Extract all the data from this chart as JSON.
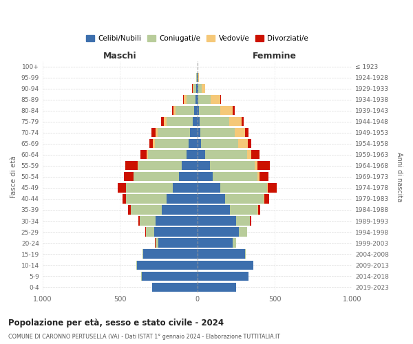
{
  "age_groups": [
    "0-4",
    "5-9",
    "10-14",
    "15-19",
    "20-24",
    "25-29",
    "30-34",
    "35-39",
    "40-44",
    "45-49",
    "50-54",
    "55-59",
    "60-64",
    "65-69",
    "70-74",
    "75-79",
    "80-84",
    "85-89",
    "90-94",
    "95-99",
    "100+"
  ],
  "birth_years": [
    "2019-2023",
    "2014-2018",
    "2009-2013",
    "2004-2008",
    "1999-2003",
    "1994-1998",
    "1989-1993",
    "1984-1988",
    "1979-1983",
    "1974-1978",
    "1969-1973",
    "1964-1968",
    "1959-1963",
    "1954-1958",
    "1949-1953",
    "1944-1948",
    "1939-1943",
    "1934-1938",
    "1929-1933",
    "1924-1928",
    "≤ 1923"
  ],
  "males": {
    "celibe": [
      290,
      360,
      390,
      350,
      250,
      280,
      270,
      230,
      200,
      160,
      120,
      100,
      70,
      55,
      45,
      30,
      20,
      10,
      5,
      2,
      0
    ],
    "coniugato": [
      0,
      1,
      2,
      5,
      20,
      50,
      100,
      200,
      260,
      300,
      290,
      280,
      250,
      220,
      210,
      170,
      120,
      60,
      20,
      5,
      0
    ],
    "vedovo": [
      0,
      0,
      0,
      0,
      1,
      1,
      1,
      1,
      1,
      2,
      3,
      5,
      5,
      10,
      15,
      15,
      15,
      15,
      5,
      2,
      0
    ],
    "divorziato": [
      0,
      0,
      0,
      0,
      2,
      3,
      8,
      15,
      20,
      50,
      60,
      80,
      40,
      25,
      25,
      20,
      8,
      5,
      2,
      0,
      0
    ]
  },
  "females": {
    "nubile": [
      250,
      330,
      360,
      310,
      230,
      270,
      250,
      210,
      180,
      150,
      100,
      80,
      50,
      25,
      20,
      15,
      10,
      8,
      5,
      2,
      0
    ],
    "coniugata": [
      0,
      1,
      2,
      5,
      20,
      50,
      90,
      180,
      250,
      300,
      290,
      290,
      270,
      240,
      220,
      190,
      140,
      80,
      25,
      5,
      0
    ],
    "vedova": [
      0,
      0,
      0,
      0,
      1,
      1,
      1,
      2,
      3,
      5,
      10,
      20,
      30,
      60,
      70,
      80,
      80,
      60,
      20,
      5,
      0
    ],
    "divorziata": [
      0,
      0,
      0,
      0,
      2,
      3,
      8,
      15,
      30,
      60,
      60,
      80,
      50,
      25,
      20,
      15,
      10,
      5,
      2,
      0,
      0
    ]
  },
  "colors": {
    "celibe_nubile": "#3d6fad",
    "coniugato": "#b8cc9a",
    "vedovo": "#f5c878",
    "divorziato": "#cc1100"
  },
  "title": "Popolazione per età, sesso e stato civile - 2024",
  "subtitle": "COMUNE DI CARONNO PERTUSELLA (VA) - Dati ISTAT 1° gennaio 2024 - Elaborazione TUTTITALIA.IT",
  "ylabel_left": "Fasce di età",
  "ylabel_right": "Anni di nascita",
  "xlabel_left": "Maschi",
  "xlabel_right": "Femmine",
  "xlim": 1000,
  "legend_labels": [
    "Celibi/Nubili",
    "Coniugati/e",
    "Vedovi/e",
    "Divorziati/e"
  ],
  "background_color": "#ffffff"
}
